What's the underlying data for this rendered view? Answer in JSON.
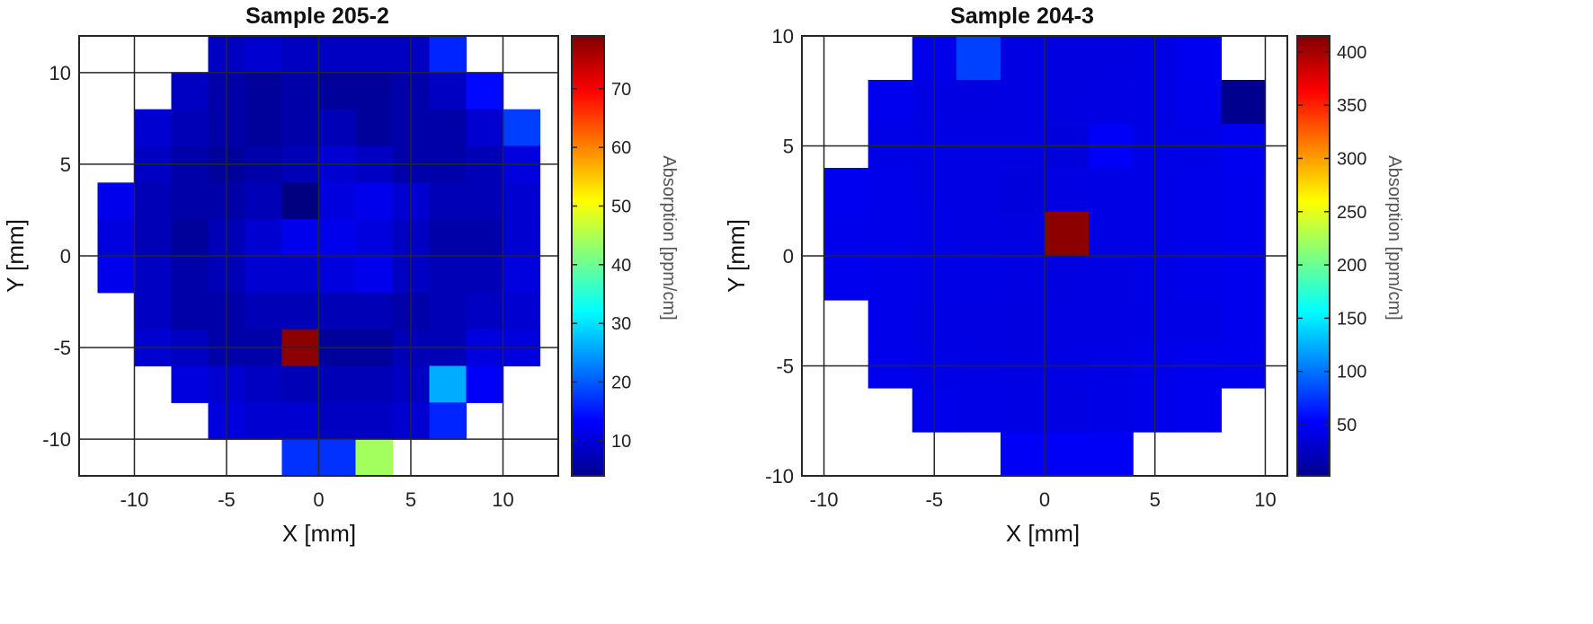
{
  "chart_data": [
    {
      "type": "heatmap",
      "title": "Sample 205-2",
      "xlabel": "X [mm]",
      "ylabel": "Y [mm]",
      "colorbar_label": "Absorption [ppm/cm]",
      "colormap": "jet",
      "xlim": [
        -13,
        13
      ],
      "ylim": [
        -12,
        12
      ],
      "xticks": [
        -10,
        -5,
        0,
        5,
        10
      ],
      "yticks": [
        -10,
        -5,
        0,
        5,
        10
      ],
      "clim": [
        4,
        79
      ],
      "colorbar_ticks": [
        10,
        20,
        30,
        40,
        50,
        60,
        70
      ],
      "grid": true,
      "cell_size": 2,
      "cells": [
        [
          -5,
          11,
          9
        ],
        [
          -3,
          11,
          10
        ],
        [
          -1,
          11,
          9
        ],
        [
          1,
          11,
          9
        ],
        [
          3,
          11,
          9
        ],
        [
          5,
          11,
          9
        ],
        [
          7,
          11,
          16
        ],
        [
          -7,
          9,
          9
        ],
        [
          -5,
          9,
          7
        ],
        [
          -3,
          9,
          6
        ],
        [
          -1,
          9,
          7
        ],
        [
          1,
          9,
          6
        ],
        [
          3,
          9,
          6
        ],
        [
          5,
          9,
          7
        ],
        [
          7,
          9,
          9
        ],
        [
          9,
          9,
          14
        ],
        [
          -9,
          7,
          10
        ],
        [
          -7,
          7,
          8
        ],
        [
          -5,
          7,
          7
        ],
        [
          -3,
          7,
          6
        ],
        [
          -1,
          7,
          7
        ],
        [
          1,
          7,
          8
        ],
        [
          3,
          7,
          6
        ],
        [
          5,
          7,
          7
        ],
        [
          7,
          7,
          7
        ],
        [
          9,
          7,
          10
        ],
        [
          11,
          7,
          18
        ],
        [
          -9,
          5,
          9
        ],
        [
          -7,
          5,
          7
        ],
        [
          -5,
          5,
          6
        ],
        [
          -3,
          5,
          7
        ],
        [
          -1,
          5,
          8
        ],
        [
          1,
          5,
          10
        ],
        [
          3,
          5,
          9
        ],
        [
          5,
          5,
          7
        ],
        [
          7,
          5,
          7
        ],
        [
          9,
          5,
          8
        ],
        [
          11,
          5,
          11
        ],
        [
          -11,
          3,
          12
        ],
        [
          -9,
          3,
          8
        ],
        [
          -7,
          3,
          7
        ],
        [
          -5,
          3,
          7
        ],
        [
          -3,
          3,
          8
        ],
        [
          -1,
          3,
          4
        ],
        [
          1,
          3,
          11
        ],
        [
          3,
          3,
          12
        ],
        [
          5,
          3,
          10
        ],
        [
          7,
          3,
          8
        ],
        [
          9,
          3,
          8
        ],
        [
          11,
          3,
          10
        ],
        [
          -11,
          1,
          11
        ],
        [
          -9,
          1,
          8
        ],
        [
          -7,
          1,
          6
        ],
        [
          -5,
          1,
          8
        ],
        [
          -3,
          1,
          10
        ],
        [
          -1,
          1,
          12
        ],
        [
          1,
          1,
          12
        ],
        [
          3,
          1,
          11
        ],
        [
          5,
          1,
          9
        ],
        [
          7,
          1,
          7
        ],
        [
          9,
          1,
          7
        ],
        [
          11,
          1,
          10
        ],
        [
          -11,
          -1,
          12
        ],
        [
          -9,
          -1,
          9
        ],
        [
          -7,
          -1,
          7
        ],
        [
          -5,
          -1,
          8
        ],
        [
          -3,
          -1,
          10
        ],
        [
          -1,
          -1,
          10
        ],
        [
          1,
          -1,
          11
        ],
        [
          3,
          -1,
          12
        ],
        [
          5,
          -1,
          9
        ],
        [
          7,
          -1,
          8
        ],
        [
          9,
          -1,
          8
        ],
        [
          11,
          -1,
          11
        ],
        [
          -9,
          -3,
          9
        ],
        [
          -7,
          -3,
          7
        ],
        [
          -5,
          -3,
          7
        ],
        [
          -3,
          -3,
          8
        ],
        [
          -1,
          -3,
          8
        ],
        [
          1,
          -3,
          8
        ],
        [
          3,
          -3,
          8
        ],
        [
          5,
          -3,
          7
        ],
        [
          7,
          -3,
          8
        ],
        [
          9,
          -3,
          9
        ],
        [
          11,
          -3,
          10
        ],
        [
          -9,
          -5,
          10
        ],
        [
          -7,
          -5,
          9
        ],
        [
          -5,
          -5,
          7
        ],
        [
          -3,
          -5,
          7
        ],
        [
          -1,
          -5,
          78
        ],
        [
          1,
          -5,
          6
        ],
        [
          3,
          -5,
          6
        ],
        [
          5,
          -5,
          8
        ],
        [
          7,
          -5,
          8
        ],
        [
          9,
          -5,
          11
        ],
        [
          11,
          -5,
          11
        ],
        [
          -7,
          -7,
          11
        ],
        [
          -5,
          -7,
          10
        ],
        [
          -3,
          -7,
          9
        ],
        [
          -1,
          -7,
          8
        ],
        [
          1,
          -7,
          8
        ],
        [
          3,
          -7,
          8
        ],
        [
          5,
          -7,
          9
        ],
        [
          7,
          -7,
          26
        ],
        [
          9,
          -7,
          13
        ],
        [
          -5,
          -9,
          11
        ],
        [
          -3,
          -9,
          10
        ],
        [
          -1,
          -9,
          10
        ],
        [
          1,
          -9,
          9
        ],
        [
          3,
          -9,
          9
        ],
        [
          5,
          -9,
          10
        ],
        [
          7,
          -9,
          16
        ],
        [
          -1,
          -11,
          17
        ],
        [
          1,
          -11,
          17
        ],
        [
          3,
          -11,
          44
        ]
      ]
    },
    {
      "type": "heatmap",
      "title": "Sample 204-3",
      "xlabel": "X [mm]",
      "ylabel": "Y [mm]",
      "colorbar_label": "Absorption [ppm/cm]",
      "colormap": "jet",
      "xlim": [
        -11,
        11
      ],
      "ylim": [
        -10,
        10
      ],
      "xticks": [
        -10,
        -5,
        0,
        5,
        10
      ],
      "yticks": [
        -10,
        -5,
        0,
        5,
        10
      ],
      "clim": [
        2,
        415
      ],
      "colorbar_ticks": [
        50,
        100,
        150,
        200,
        250,
        300,
        350,
        400
      ],
      "grid": true,
      "cell_size": 2,
      "cells": [
        [
          -5,
          9,
          45
        ],
        [
          -3,
          9,
          80
        ],
        [
          -1,
          9,
          42
        ],
        [
          1,
          9,
          41
        ],
        [
          3,
          9,
          41
        ],
        [
          5,
          9,
          43
        ],
        [
          7,
          9,
          48
        ],
        [
          -7,
          7,
          47
        ],
        [
          -5,
          7,
          42
        ],
        [
          -3,
          7,
          41
        ],
        [
          -1,
          7,
          42
        ],
        [
          1,
          7,
          41
        ],
        [
          3,
          7,
          42
        ],
        [
          5,
          7,
          43
        ],
        [
          7,
          7,
          46
        ],
        [
          9,
          7,
          8
        ],
        [
          -7,
          5,
          44
        ],
        [
          -5,
          5,
          43
        ],
        [
          -3,
          5,
          42
        ],
        [
          -1,
          5,
          42
        ],
        [
          1,
          5,
          40
        ],
        [
          3,
          5,
          51
        ],
        [
          5,
          5,
          43
        ],
        [
          7,
          5,
          44
        ],
        [
          9,
          5,
          48
        ],
        [
          -9,
          3,
          48
        ],
        [
          -7,
          3,
          45
        ],
        [
          -5,
          3,
          43
        ],
        [
          -3,
          3,
          42
        ],
        [
          -1,
          3,
          40
        ],
        [
          1,
          3,
          42
        ],
        [
          3,
          3,
          43
        ],
        [
          5,
          3,
          44
        ],
        [
          7,
          3,
          45
        ],
        [
          9,
          3,
          47
        ],
        [
          -9,
          1,
          46
        ],
        [
          -7,
          1,
          45
        ],
        [
          -5,
          1,
          44
        ],
        [
          -3,
          1,
          42
        ],
        [
          -1,
          1,
          41
        ],
        [
          1,
          1,
          410
        ],
        [
          3,
          1,
          43
        ],
        [
          5,
          1,
          44
        ],
        [
          7,
          1,
          45
        ],
        [
          9,
          1,
          47
        ],
        [
          -9,
          -1,
          47
        ],
        [
          -7,
          -1,
          45
        ],
        [
          -5,
          -1,
          44
        ],
        [
          -3,
          -1,
          43
        ],
        [
          -1,
          -1,
          42
        ],
        [
          1,
          -1,
          41
        ],
        [
          3,
          -1,
          42
        ],
        [
          5,
          -1,
          44
        ],
        [
          7,
          -1,
          45
        ],
        [
          9,
          -1,
          47
        ],
        [
          -7,
          -3,
          45
        ],
        [
          -5,
          -3,
          43
        ],
        [
          -3,
          -3,
          42
        ],
        [
          -1,
          -3,
          41
        ],
        [
          1,
          -3,
          42
        ],
        [
          3,
          -3,
          42
        ],
        [
          5,
          -3,
          43
        ],
        [
          7,
          -3,
          44
        ],
        [
          9,
          -3,
          47
        ],
        [
          -7,
          -5,
          46
        ],
        [
          -5,
          -5,
          44
        ],
        [
          -3,
          -5,
          43
        ],
        [
          -1,
          -5,
          42
        ],
        [
          1,
          -5,
          43
        ],
        [
          3,
          -5,
          44
        ],
        [
          5,
          -5,
          45
        ],
        [
          7,
          -5,
          47
        ],
        [
          9,
          -5,
          48
        ],
        [
          -5,
          -7,
          45
        ],
        [
          -3,
          -7,
          44
        ],
        [
          -1,
          -7,
          43
        ],
        [
          1,
          -7,
          42
        ],
        [
          3,
          -7,
          44
        ],
        [
          5,
          -7,
          45
        ],
        [
          7,
          -7,
          47
        ],
        [
          -1,
          -9,
          50
        ],
        [
          1,
          -9,
          50
        ],
        [
          3,
          -9,
          50
        ]
      ]
    }
  ]
}
